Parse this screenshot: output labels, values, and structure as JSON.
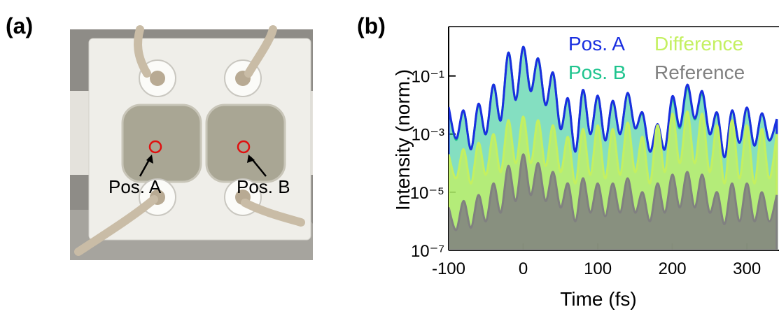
{
  "panel_labels": [
    "(a)",
    "(b)"
  ],
  "photo": {
    "annotations": [
      "Pos. A",
      "Pos. B"
    ]
  },
  "chart_data": {
    "type": "area",
    "xlabel": "Time (fs)",
    "ylabel": "Intensity (norm.)",
    "log_y": true,
    "legend": "upper right",
    "xlim": [
      -100,
      343
    ],
    "ylim": [
      1e-07,
      5
    ],
    "xticks": [
      -100,
      0,
      100,
      200,
      300
    ],
    "yticks": [
      {
        "value": 1e-07,
        "label": "10⁻⁷"
      },
      {
        "value": 1e-05,
        "label": "10⁻⁵"
      },
      {
        "value": 0.001,
        "label": "10⁻³"
      },
      {
        "value": 0.1,
        "label": "10⁻¹"
      }
    ],
    "x": [
      -100,
      -90,
      -80,
      -70,
      -60,
      -50,
      -40,
      -30,
      -20,
      -10,
      0,
      10,
      20,
      30,
      40,
      50,
      60,
      70,
      80,
      90,
      100,
      110,
      120,
      130,
      140,
      150,
      160,
      170,
      180,
      190,
      200,
      210,
      220,
      230,
      240,
      250,
      260,
      270,
      280,
      290,
      300,
      310,
      320,
      330,
      340
    ],
    "series": [
      {
        "name": "Pos. B",
        "color": "#1fc48e",
        "values": [
          0.0079,
          0.00063,
          0.0063,
          0.00032,
          0.01,
          0.001,
          0.05,
          0.0032,
          0.63,
          0.016,
          1.0,
          0.032,
          0.4,
          0.01,
          0.13,
          0.0016,
          0.016,
          0.00025,
          0.032,
          0.001,
          0.02,
          0.00063,
          0.013,
          0.001,
          0.025,
          0.0016,
          0.005,
          0.00025,
          0.002,
          0.00032,
          0.016,
          0.0016,
          0.04,
          0.0032,
          0.025,
          0.001,
          0.005,
          0.00016,
          0.0063,
          0.0005,
          0.0079,
          0.0004,
          0.005,
          0.00063,
          0.0032
        ]
      },
      {
        "name": "Pos. A",
        "color": "#1a2fe0",
        "values": [
          0.0085,
          0.0007,
          0.0065,
          0.0003,
          0.011,
          0.001,
          0.05,
          0.003,
          0.63,
          0.015,
          1.0,
          0.03,
          0.4,
          0.01,
          0.13,
          0.0015,
          0.017,
          0.00025,
          0.033,
          0.001,
          0.021,
          0.0006,
          0.014,
          0.001,
          0.026,
          0.0016,
          0.0055,
          0.00025,
          0.0022,
          0.0003,
          0.02,
          0.0018,
          0.05,
          0.0035,
          0.03,
          0.001,
          0.0055,
          0.00016,
          0.0065,
          0.0005,
          0.0082,
          0.0004,
          0.0052,
          0.0006,
          0.0033
        ]
      },
      {
        "name": "Difference",
        "color": "#c4f060",
        "values": [
          0.0002,
          3e-05,
          0.0003,
          2e-05,
          0.0005,
          4e-05,
          0.001,
          5e-05,
          0.003,
          0.0001,
          0.004,
          0.0001,
          0.003,
          8e-05,
          0.002,
          5e-05,
          0.0008,
          2e-05,
          0.0015,
          4e-05,
          0.002,
          3e-05,
          0.0015,
          4e-05,
          0.0025,
          5e-05,
          0.0008,
          2e-05,
          0.002,
          5e-05,
          0.005,
          0.0001,
          0.006,
          0.0001,
          0.005,
          5e-05,
          0.002,
          2e-05,
          0.003,
          3e-05,
          0.002,
          2e-05,
          0.0015,
          3e-05,
          0.001
        ]
      },
      {
        "name": "Reference",
        "color": "#808080",
        "values": [
          3e-06,
          5e-07,
          5e-06,
          6e-07,
          8e-06,
          1e-06,
          2e-05,
          2e-06,
          8e-05,
          5e-06,
          0.0002,
          8e-06,
          0.0001,
          5e-06,
          5e-05,
          3e-06,
          2e-05,
          1e-06,
          3e-05,
          2e-06,
          2e-05,
          1.5e-06,
          2e-05,
          2e-06,
          3e-05,
          2e-06,
          1e-05,
          1e-06,
          2e-05,
          2e-06,
          4e-05,
          3e-06,
          5e-05,
          3e-06,
          4e-05,
          2e-06,
          1e-05,
          8e-07,
          2e-05,
          1e-06,
          2e-05,
          1e-06,
          1e-05,
          1e-06,
          8e-06
        ]
      }
    ]
  }
}
